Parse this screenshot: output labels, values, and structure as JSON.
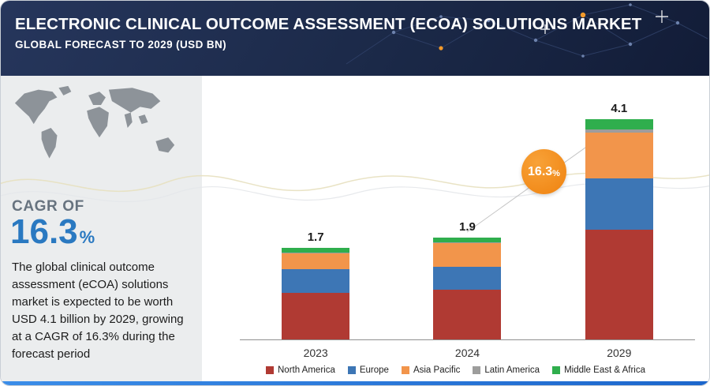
{
  "header": {
    "title": "ELECTRONIC CLINICAL OUTCOME ASSESSMENT (ECOA) SOLUTIONS MARKET",
    "subtitle": "GLOBAL FORECAST TO 2029 (USD BN)"
  },
  "sidebar": {
    "cagr_label": "CAGR OF",
    "cagr_value": "16.3",
    "cagr_unit": "%",
    "description": "The global clinical outcome assessment (eCOA) solutions market is expected to be worth USD 4.1 billion by 2029, growing at a CAGR of 16.3% during the forecast period"
  },
  "growth_badge": {
    "value": "16.3",
    "unit": "%"
  },
  "chart_data": {
    "type": "bar",
    "stacked": true,
    "title": "Electronic Clinical Outcome Assessment (eCOA) Solutions Market, Global Forecast to 2029 (USD BN)",
    "unit": "USD BN",
    "categories": [
      "2023",
      "2024",
      "2029"
    ],
    "totals": [
      "1.7",
      "1.9",
      "4.1"
    ],
    "series": [
      {
        "name": "North America",
        "color": "#b03a33",
        "values": [
          0.87,
          0.93,
          2.05
        ]
      },
      {
        "name": "Europe",
        "color": "#3d76b5",
        "values": [
          0.44,
          0.43,
          0.95
        ]
      },
      {
        "name": "Asia Pacific",
        "color": "#f2954b",
        "values": [
          0.29,
          0.43,
          0.85
        ]
      },
      {
        "name": "Latin America",
        "color": "#9d9d9c",
        "values": [
          0.02,
          0.02,
          0.06
        ]
      },
      {
        "name": "Middle East & Africa",
        "color": "#2fae4d",
        "values": [
          0.08,
          0.09,
          0.19
        ]
      }
    ],
    "cagr_annotation": "16.3%",
    "ylim": [
      0,
      4.5
    ],
    "grid": false,
    "legend_position": "bottom"
  }
}
